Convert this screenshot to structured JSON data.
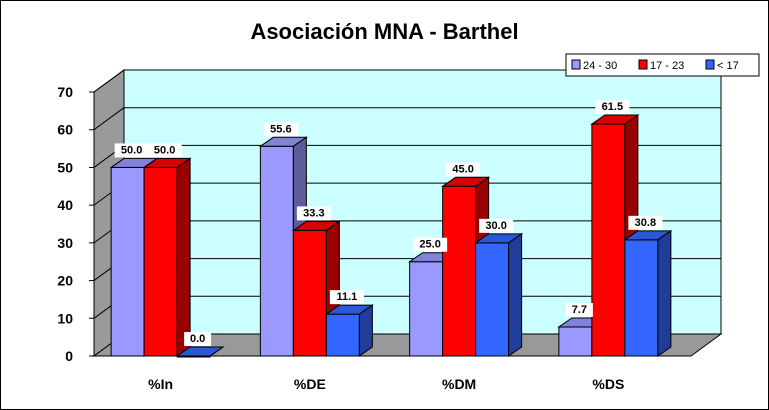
{
  "chart_data": {
    "type": "bar",
    "title": "Asociación MNA - Barthel",
    "categories": [
      "%In",
      "%DE",
      "%DM",
      "%DS"
    ],
    "series": [
      {
        "name": "24 - 30",
        "values": [
          50.0,
          55.6,
          25.0,
          7.7
        ],
        "labels": [
          "50.0",
          "55.6",
          "25.0",
          "7.7"
        ]
      },
      {
        "name": "17 - 23",
        "values": [
          50.0,
          33.3,
          45.0,
          61.5
        ],
        "labels": [
          "50.0",
          "33.3",
          "45.0",
          "61.5"
        ]
      },
      {
        "name": "< 17",
        "values": [
          0.0,
          11.1,
          30.0,
          30.8
        ],
        "labels": [
          "0.0",
          "11.1",
          "30.0",
          "30.8"
        ]
      }
    ],
    "yticks": [
      "0",
      "10",
      "20",
      "30",
      "40",
      "50",
      "60",
      "70"
    ],
    "ylim": [
      0,
      70
    ],
    "grid": true,
    "legend_position": "top-right",
    "colors": {
      "series": [
        "#9999ff",
        "#ff0000",
        "#3366ff"
      ],
      "back_wall": "#ccffff",
      "floor": "#999999"
    }
  }
}
